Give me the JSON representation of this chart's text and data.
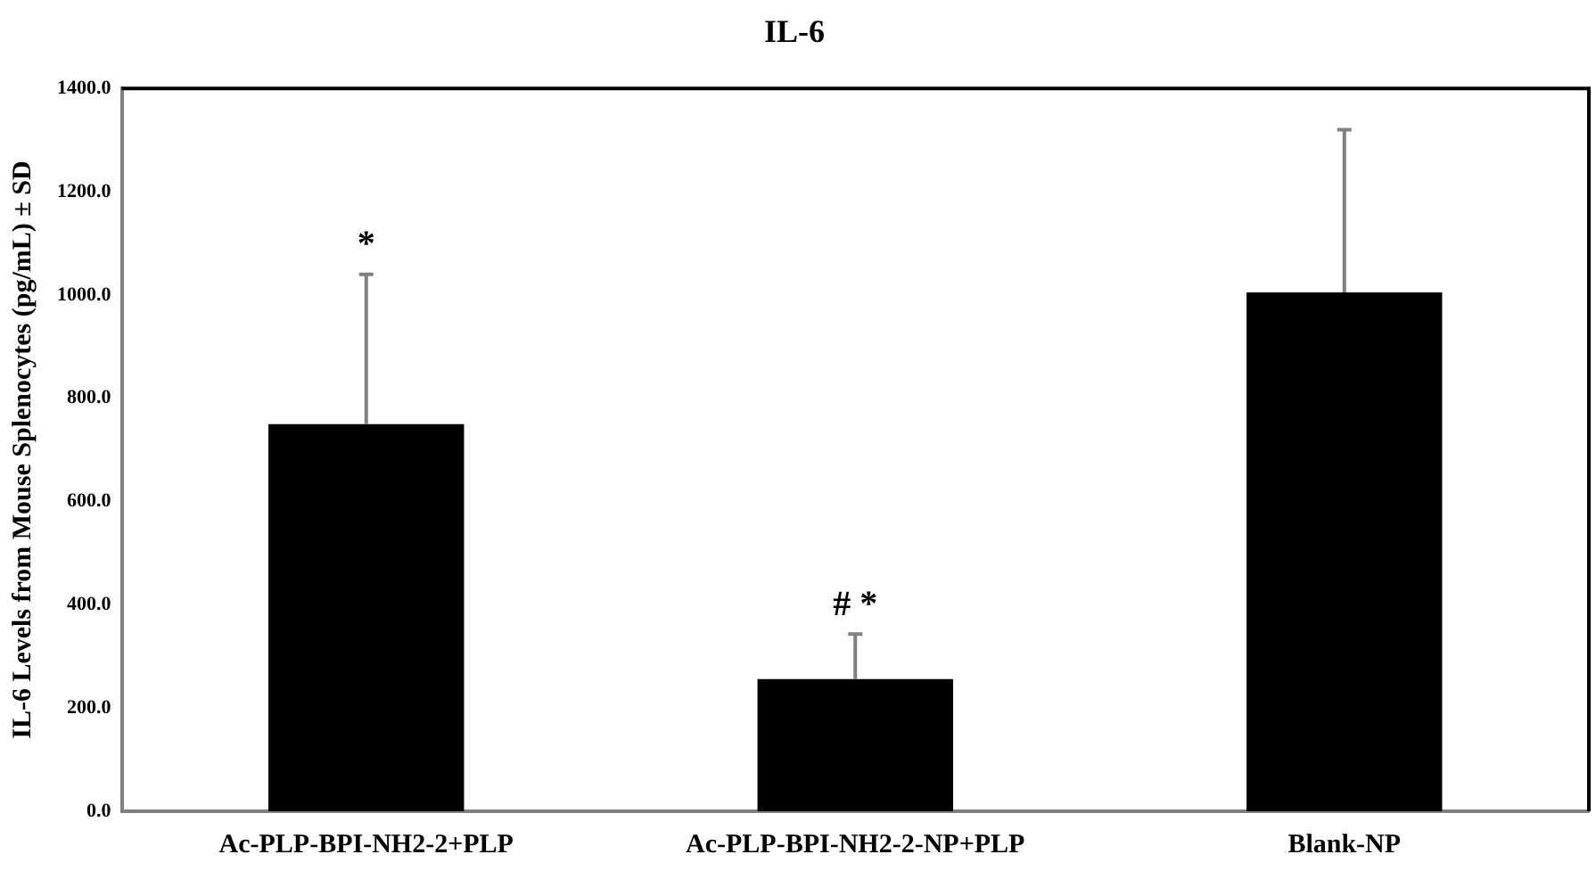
{
  "chart_data": {
    "type": "bar",
    "title": "IL-6",
    "ylabel": "IL-6 Levels from Mouse Splenocytes (pg/mL) ± SD",
    "categories": [
      "Ac-PLP-BPI-NH2-2+PLP",
      "Ac-PLP-BPI-NH2-2-NP+PLP",
      "Blank-NP"
    ],
    "values": [
      750,
      256,
      1005
    ],
    "color": "#000000",
    "errors": [
      [
        750,
        1040
      ],
      [
        256,
        343
      ],
      [
        1005,
        1320
      ]
    ],
    "ylim": [
      0,
      1400
    ],
    "yticks": [
      {
        "value": 0,
        "label": "0.0"
      },
      {
        "value": 200,
        "label": "200.0"
      },
      {
        "value": 400,
        "label": "400.0"
      },
      {
        "value": 600,
        "label": "600.0"
      },
      {
        "value": 800,
        "label": "800.0"
      },
      {
        "value": 1000,
        "label": "1000.0"
      },
      {
        "value": 1200,
        "label": "1200.0"
      },
      {
        "value": 1400,
        "label": "1400.0"
      }
    ],
    "annotations": [
      "*",
      "# *"
    ],
    "grid": false,
    "legend": false
  }
}
